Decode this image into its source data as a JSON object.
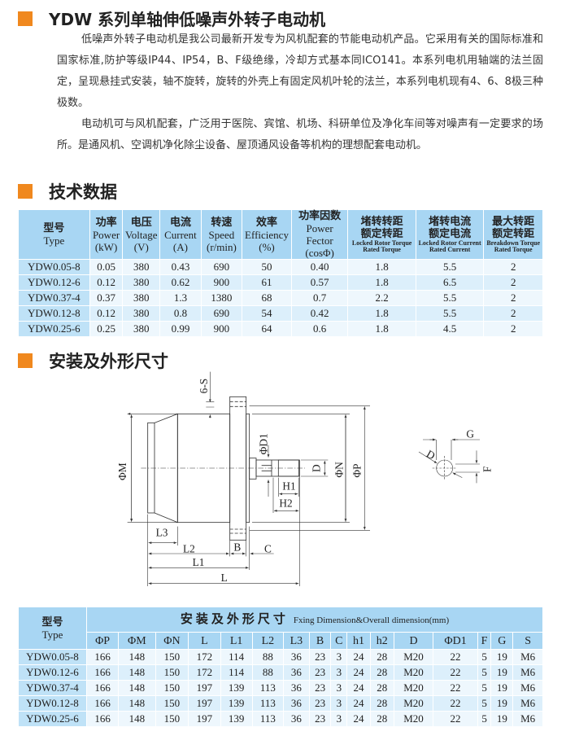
{
  "title": "YDW 系列单轴伸低噪声外转子电动机",
  "intro": [
    "低噪声外转子电动机是我公司最新开发专为风机配套的节能电动机产品。它采用有关的国际标准和国家标准,防护等级IP44、IP54，B、F级绝缘，冷却方式基本同ICO141。本系列电机用轴端的法兰固定，呈现悬挂式安装，轴不旋转，旋转的外壳上有固定风机叶轮的法兰，本系列电机现有4、6、8极三种极数。",
    "电动机可与风机配套，广泛用于医院、宾馆、机场、科研单位及净化车间等对噪声有一定要求的场所。是通风机、空调机净化除尘设备、屋顶通风设备等机构的理想配套电动机。"
  ],
  "tech_title": "技术数据",
  "tech_table": {
    "headers": [
      {
        "cn": "型号",
        "en": "Type"
      },
      {
        "cn": "功率",
        "en": "Power",
        "unit": "(kW)"
      },
      {
        "cn": "电压",
        "en": "Voltage",
        "unit": "(V)"
      },
      {
        "cn": "电流",
        "en": "Current",
        "unit": "(A)"
      },
      {
        "cn": "转速",
        "en": "Speed",
        "unit": "(r/min)"
      },
      {
        "cn": "效率",
        "en": "Efficiency",
        "unit": "(%)"
      },
      {
        "cn": "功率因数",
        "en": "Power Fector",
        "unit": "(cosΦ)"
      },
      {
        "cn": "堵转转距",
        "cn2": "额定转距",
        "en": "Locked Rotor Torque Rated Torque"
      },
      {
        "cn": "堵转电流",
        "cn2": "额定电流",
        "en": "Locked Rotor Current Rated Current"
      },
      {
        "cn": "最大转距",
        "cn2": "额定转距",
        "en": "Breakdown Torque Rated Torque"
      }
    ],
    "rows": [
      [
        "YDW0.05-8",
        "0.05",
        "380",
        "0.43",
        "690",
        "50",
        "0.40",
        "1.8",
        "5.5",
        "2"
      ],
      [
        "YDW0.12-6",
        "0.12",
        "380",
        "0.62",
        "900",
        "61",
        "0.57",
        "1.8",
        "6.5",
        "2"
      ],
      [
        "YDW0.37-4",
        "0.37",
        "380",
        "1.3",
        "1380",
        "68",
        "0.7",
        "2.2",
        "5.5",
        "2"
      ],
      [
        "YDW0.12-8",
        "0.12",
        "380",
        "0.8",
        "690",
        "54",
        "0.42",
        "1.8",
        "5.5",
        "2"
      ],
      [
        "YDW0.25-6",
        "0.25",
        "380",
        "0.99",
        "900",
        "64",
        "0.6",
        "1.8",
        "4.5",
        "2"
      ]
    ]
  },
  "dim_title": "安装及外形尺寸",
  "drawing_labels": {
    "s": "6-S",
    "m": "ΦM",
    "d1": "ΦD1",
    "d": "D",
    "n": "ΦN",
    "p": "ΦP",
    "h1": "H1",
    "h2": "H2",
    "l3": "L3",
    "l2": "L2",
    "b": "B",
    "c": "C",
    "l1": "L1",
    "l": "L",
    "g": "G",
    "f": "F",
    "dd": "D"
  },
  "dim_table": {
    "type_cn": "型号",
    "type_en": "Type",
    "span_cn": "安装及外形尺寸",
    "span_en": "Fxing Dimension&Overall dimension(mm)",
    "columns": [
      "ΦP",
      "ΦM",
      "ΦN",
      "L",
      "L1",
      "L2",
      "L3",
      "B",
      "C",
      "h1",
      "h2",
      "D",
      "ΦD1",
      "F",
      "G",
      "S"
    ],
    "rows": [
      [
        "YDW0.05-8",
        "166",
        "148",
        "150",
        "172",
        "114",
        "88",
        "36",
        "23",
        "3",
        "24",
        "28",
        "M20",
        "22",
        "5",
        "19",
        "M6"
      ],
      [
        "YDW0.12-6",
        "166",
        "148",
        "150",
        "172",
        "114",
        "88",
        "36",
        "23",
        "3",
        "24",
        "28",
        "M20",
        "22",
        "5",
        "19",
        "M6"
      ],
      [
        "YDW0.37-4",
        "166",
        "148",
        "150",
        "197",
        "139",
        "113",
        "36",
        "23",
        "3",
        "24",
        "28",
        "M20",
        "22",
        "5",
        "19",
        "M6"
      ],
      [
        "YDW0.12-8",
        "166",
        "148",
        "150",
        "197",
        "139",
        "113",
        "36",
        "23",
        "3",
        "24",
        "28",
        "M20",
        "22",
        "5",
        "19",
        "M6"
      ],
      [
        "YDW0.25-6",
        "166",
        "148",
        "150",
        "197",
        "139",
        "113",
        "36",
        "23",
        "3",
        "24",
        "28",
        "M20",
        "22",
        "5",
        "19",
        "M6"
      ]
    ]
  },
  "colors": {
    "accent": "#f0881e",
    "header": "#a8d6f3",
    "type_col": "#bfe2f7"
  }
}
